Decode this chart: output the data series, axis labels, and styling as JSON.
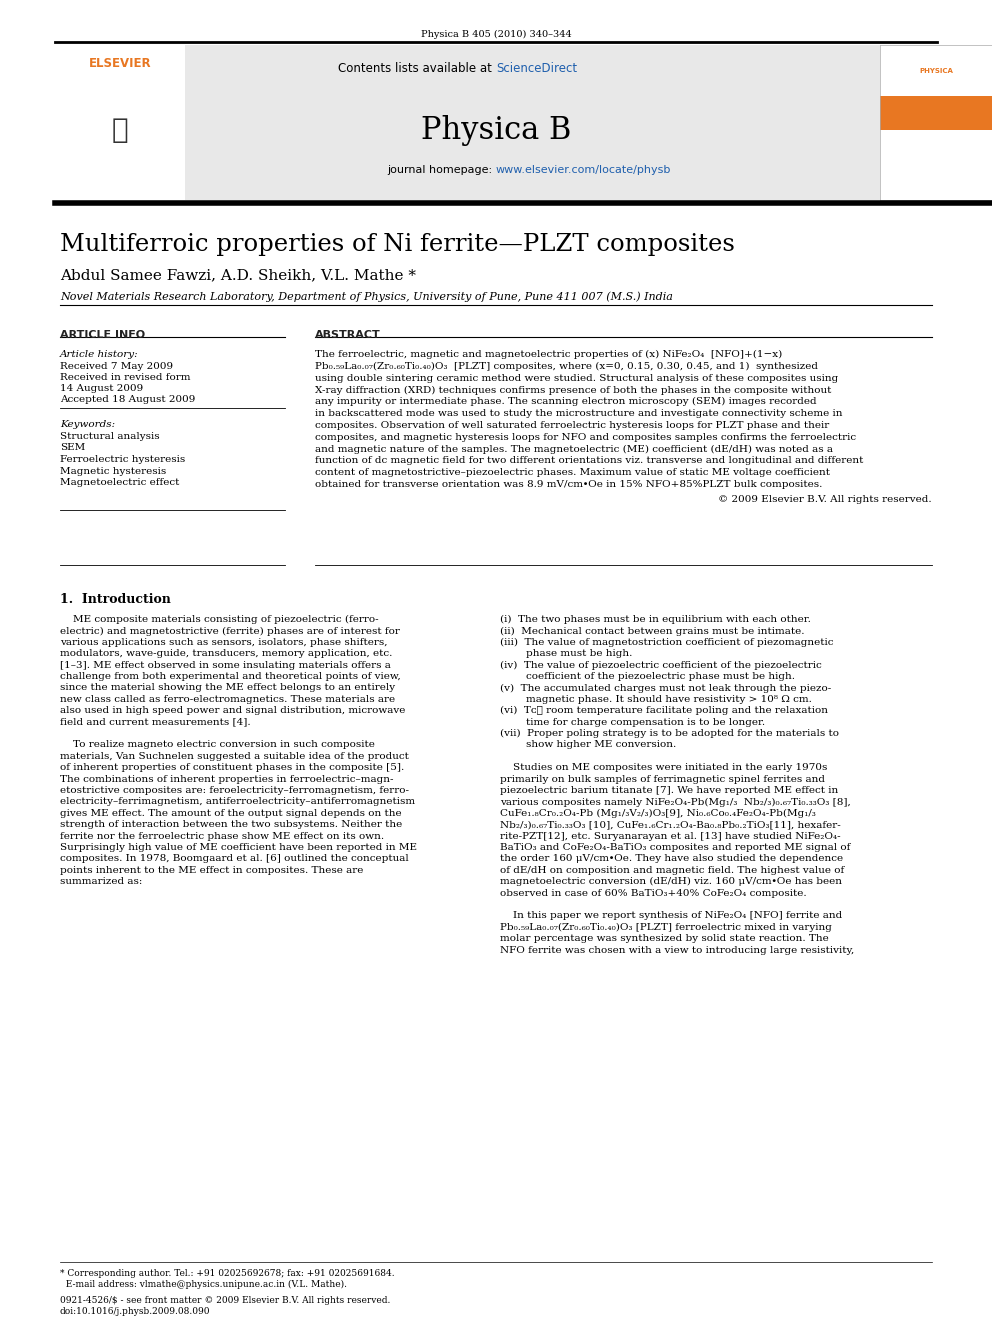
{
  "page_citation": "Physica B 405 (2010) 340–344",
  "journal_name": "Physica B",
  "contents_text": "Contents lists available at ",
  "sciencedirect_text": "ScienceDirect",
  "journal_url": "www.elsevier.com/locate/physb",
  "journal_url_prefix": "journal homepage: ",
  "title": "Multiferroic properties of Ni ferrite—PLZT composites",
  "authors": "Abdul Samee Fawzi, A.D. Sheikh, V.L. Mathe *",
  "affiliation": "Novel Materials Research Laboratory, Department of Physics, University of Pune, Pune 411 007 (M.S.) India",
  "article_info_header": "ARTICLE INFO",
  "abstract_header": "ABSTRACT",
  "article_history_label": "Article history:",
  "received": "Received 7 May 2009",
  "received_revised": "Received in revised form",
  "revised_date": "14 August 2009",
  "accepted": "Accepted 18 August 2009",
  "keywords_label": "Keywords:",
  "keywords": [
    "Structural analysis",
    "SEM",
    "Ferroelectric hysteresis",
    "Magnetic hysteresis",
    "Magnetoelectric effect"
  ],
  "abstract_lines": [
    "The ferroelectric, magnetic and magnetoelectric properties of (x) NiFe₂O₄  [NFO]+(1−x)",
    "Pb₀.₅₉La₀.₀₇(Zr₀.₆₀Ti₀.₄₀)O₃  [PLZT] composites, where (x=0, 0.15, 0.30, 0.45, and 1)  synthesized",
    "using double sintering ceramic method were studied. Structural analysis of these composites using",
    "X-ray diffraction (XRD) techniques confirms presence of both the phases in the composite without",
    "any impurity or intermediate phase. The scanning electron microscopy (SEM) images recorded",
    "in backscattered mode was used to study the microstructure and investigate connectivity scheme in",
    "composites. Observation of well saturated ferroelectric hysteresis loops for PLZT phase and their",
    "composites, and magnetic hysteresis loops for NFO and composites samples confirms the ferroelectric",
    "and magnetic nature of the samples. The magnetoelectric (ME) coefficient (dE/dH) was noted as a",
    "function of dc magnetic field for two different orientations viz. transverse and longitudinal and different",
    "content of magnetostrictive–piezoelectric phases. Maximum value of static ME voltage coefficient",
    "obtained for transverse orientation was 8.9 mV/cm∙Oe in 15% NFO+85%PLZT bulk composites."
  ],
  "copyright": "© 2009 Elsevier B.V. All rights reserved.",
  "intro_header": "1.  Introduction",
  "intro_col1_lines": [
    "    ME composite materials consisting of piezoelectric (ferro-",
    "electric) and magnetostrictive (ferrite) phases are of interest for",
    "various applications such as sensors, isolators, phase shifters,",
    "modulators, wave-guide, transducers, memory application, etc.",
    "[1–3]. ME effect observed in some insulating materials offers a",
    "challenge from both experimental and theoretical points of view,",
    "since the material showing the ME effect belongs to an entirely",
    "new class called as ferro-electromagnetics. These materials are",
    "also used in high speed power and signal distribution, microwave",
    "field and current measurements [4].",
    "",
    "    To realize magneto electric conversion in such composite",
    "materials, Van Suchnelen suggested a suitable idea of the product",
    "of inherent properties of constituent phases in the composite [5].",
    "The combinations of inherent properties in ferroelectric–magn-",
    "etostrictive composites are: feroelectricity–ferromagnetism, ferro-",
    "electricity–ferrimagnetism, antiferroelectricity–antiferromagnetism",
    "gives ME effect. The amount of the output signal depends on the",
    "strength of interaction between the two subsystems. Neither the",
    "ferrite nor the ferroelectric phase show ME effect on its own.",
    "Surprisingly high value of ME coefficient have been reported in ME",
    "composites. In 1978, Boomgaard et al. [6] outlined the conceptual",
    "points inherent to the ME effect in composites. These are",
    "summarized as:"
  ],
  "intro_col2_lines": [
    "(i)  The two phases must be in equilibrium with each other.",
    "(ii)  Mechanical contact between grains must be intimate.",
    "(iii)  The value of magnetostriction coefficient of piezomagnetic",
    "        phase must be high.",
    "(iv)  The value of piezoelectric coefficient of the piezoelectric",
    "        coefficient of the piezoelectric phase must be high.",
    "(v)  The accumulated charges must not leak through the piezo-",
    "        magnetic phase. It should have resistivity > 10⁸ Ω cm.",
    "(vi)  Tᴄ≫ room temperature facilitate poling and the relaxation",
    "        time for charge compensation is to be longer.",
    "(vii)  Proper poling strategy is to be adopted for the materials to",
    "        show higher ME conversion.",
    "",
    "    Studies on ME composites were initiated in the early 1970s",
    "primarily on bulk samples of ferrimagnetic spinel ferrites and",
    "piezoelectric barium titanate [7]. We have reported ME effect in",
    "various composites namely NiFe₂O₄-Pb(Mg₁/₃  Nb₂/₃)₀.₆₇Ti₀.₃₃O₃ [8],",
    "CuFe₁.₈Cr₀.₂O₄-Pb (Mg₁/₃V₂/₃)O₃[9], Ni₀.₆Co₀.₄Fe₂O₄-Pb(Mg₁/₃",
    "Nb₂/₃)₀.₆₇Ti₀.₃₃O₃ [10], CuFe₁.₆Cr₁.₂O₄-Ba₀.₈Pb₀.₂TiO₃[11], hexafer-",
    "rite-PZT[12], etc. Suryanarayan et al. [13] have studied NiFe₂O₄-",
    "BaTiO₃ and CoFe₂O₄-BaTiO₃ composites and reported ME signal of",
    "the order 160 μV/cm∙Oe. They have also studied the dependence",
    "of dE/dH on composition and magnetic field. The highest value of",
    "magnetoelectric conversion (dE/dH) viz. 160 μV/cm∙Oe has been",
    "observed in case of 60% BaTiO₃+40% CoFe₂O₄ composite.",
    "",
    "    In this paper we report synthesis of NiFe₂O₄ [NFO] ferrite and",
    "Pb₀.₅₉La₀.₀₇(Zr₀.₆₀Ti₀.₄₀)O₃ [PLZT] ferroelectric mixed in varying",
    "molar percentage was synthesized by solid state reaction. The",
    "NFO ferrite was chosen with a view to introducing large resistivity,"
  ],
  "footer_line1": "* Corresponding author. Tel.: +91 02025692678; fax: +91 02025691684.",
  "footer_line2": "  E-mail address: vlmathe@physics.unipune.ac.in (V.L. Mathe).",
  "footer_line3": "0921-4526/$ - see front matter © 2009 Elsevier B.V. All rights reserved.",
  "footer_line4": "doi:10.1016/j.physb.2009.08.090",
  "elsevier_color": "#E87722",
  "sd_color": "#1F5FAD",
  "link_color": "#1F5FAD",
  "bg_color": "#ffffff",
  "header_bg": "#E8E8E8"
}
